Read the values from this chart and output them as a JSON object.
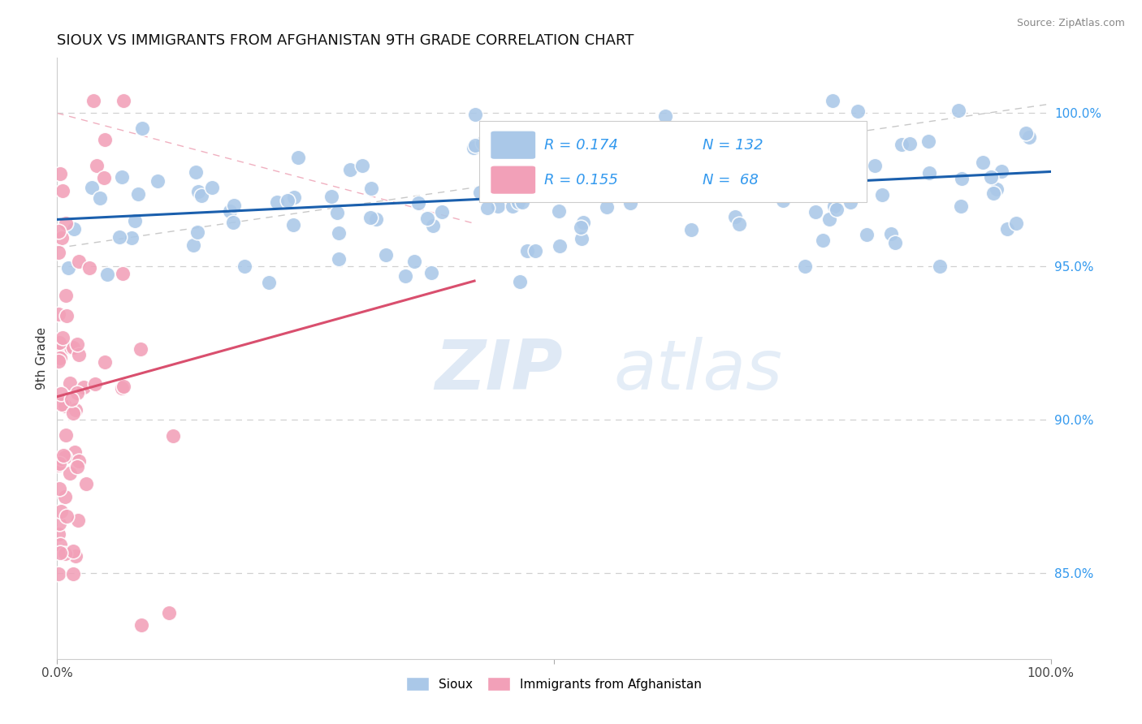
{
  "title": "SIOUX VS IMMIGRANTS FROM AFGHANISTAN 9TH GRADE CORRELATION CHART",
  "source": "Source: ZipAtlas.com",
  "ylabel": "9th Grade",
  "xlim": [
    0.0,
    1.0
  ],
  "ylim": [
    0.822,
    1.018
  ],
  "blue_R": 0.174,
  "blue_N": 132,
  "pink_R": 0.155,
  "pink_N": 68,
  "blue_color": "#aac8e8",
  "pink_color": "#f2a0b8",
  "blue_line_color": "#1a5fad",
  "pink_line_color": "#d94f6e",
  "legend_label_blue": "Sioux",
  "legend_label_pink": "Immigrants from Afghanistan",
  "watermark_zip": "ZIP",
  "watermark_atlas": "atlas",
  "ytick_positions": [
    0.85,
    0.9,
    0.95,
    1.0
  ],
  "ytick_labels": [
    "85.0%",
    "90.0%",
    "95.0%",
    "100.0%"
  ],
  "grid_color": "#d0d0d0",
  "title_fontsize": 13,
  "marker_size": 180
}
